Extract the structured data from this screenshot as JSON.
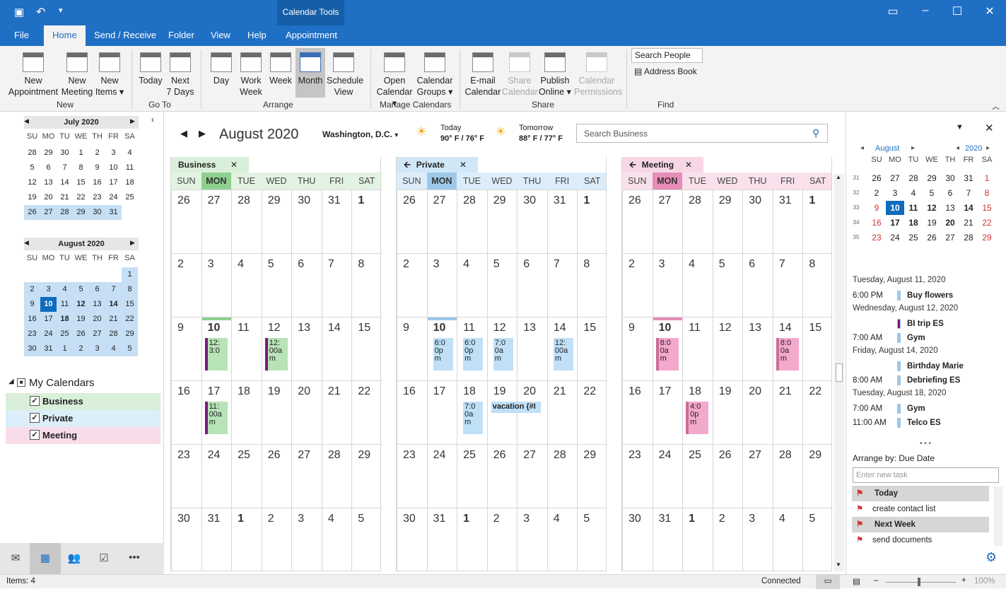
{
  "titlebar": {
    "context": "Calendar Tools"
  },
  "tabs": [
    "File",
    "Home",
    "Send / Receive",
    "Folder",
    "View",
    "Help",
    "Appointment"
  ],
  "ribbon": {
    "groups": {
      "new": "New",
      "goto": "Go To",
      "arrange": "Arrange",
      "manage": "Manage Calendars",
      "share": "Share",
      "find": "Find"
    },
    "new_appointment": [
      "New",
      "Appointment"
    ],
    "new_meeting": [
      "New",
      "Meeting"
    ],
    "new_items": [
      "New",
      "Items ▾"
    ],
    "today": "Today",
    "next7": [
      "Next",
      "7 Days"
    ],
    "day": "Day",
    "workweek": [
      "Work",
      "Week"
    ],
    "week": "Week",
    "month": "Month",
    "schedule": [
      "Schedule",
      "View"
    ],
    "open_cal": [
      "Open",
      "Calendar ▾"
    ],
    "cal_groups": [
      "Calendar",
      "Groups ▾"
    ],
    "email_cal": [
      "E-mail",
      "Calendar"
    ],
    "share_cal": [
      "Share",
      "Calendar"
    ],
    "publish": [
      "Publish",
      "Online ▾"
    ],
    "permissions": [
      "Calendar",
      "Permissions"
    ],
    "search_people": "Search People",
    "address_book": "Address Book"
  },
  "mini1": {
    "title": "July 2020",
    "dows": [
      "SU",
      "MO",
      "TU",
      "WE",
      "TH",
      "FR",
      "SA"
    ],
    "weeks": [
      [
        "28",
        "29",
        "30",
        "1",
        "2",
        "3",
        "4"
      ],
      [
        "5",
        "6",
        "7",
        "8",
        "9",
        "10",
        "11"
      ],
      [
        "12",
        "13",
        "14",
        "15",
        "16",
        "17",
        "18"
      ],
      [
        "19",
        "20",
        "21",
        "22",
        "23",
        "24",
        "25"
      ],
      [
        "26",
        "27",
        "28",
        "29",
        "30",
        "31",
        ""
      ]
    ]
  },
  "mini2": {
    "title": "August 2020",
    "weeks": [
      [
        "",
        "",
        "",
        "",
        "",
        "",
        "1"
      ],
      [
        "2",
        "3",
        "4",
        "5",
        "6",
        "7",
        "8"
      ],
      [
        "9",
        "10",
        "11",
        "12",
        "13",
        "14",
        "15"
      ],
      [
        "16",
        "17",
        "18",
        "19",
        "20",
        "21",
        "22"
      ],
      [
        "23",
        "24",
        "25",
        "26",
        "27",
        "28",
        "29"
      ],
      [
        "30",
        "31",
        "1",
        "2",
        "3",
        "4",
        "5"
      ]
    ]
  },
  "mycalendars": {
    "title": "My Calendars",
    "items": [
      "Business",
      "Private",
      "Meeting"
    ]
  },
  "calheader": {
    "title": "August 2020",
    "location": "Washington,  D.C.",
    "today_label": "Today",
    "today_temp": "90° F / 76° F",
    "tomorrow_label": "Tomorrow",
    "tomorrow_temp": "88° F / 77° F",
    "search_placeholder": "Search Business"
  },
  "calendars": [
    {
      "name": "Business",
      "color": "#d9efd9",
      "hdr": "#e3f3e3",
      "mon": "#8fcf8f"
    },
    {
      "name": "Private",
      "color": "#cfe7f7",
      "hdr": "#dcedf9",
      "mon": "#9cc8ea"
    },
    {
      "name": "Meeting",
      "color": "#f7d7e6",
      "hdr": "#f9e1ec",
      "mon": "#e88cb8"
    }
  ],
  "dows": [
    "SUN",
    "MON",
    "TUE",
    "WED",
    "THU",
    "FRI",
    "SAT"
  ],
  "weeks": [
    [
      "26",
      "27",
      "28",
      "29",
      "30",
      "31",
      "1"
    ],
    [
      "2",
      "3",
      "4",
      "5",
      "6",
      "7",
      "8"
    ],
    [
      "9",
      "10",
      "11",
      "12",
      "13",
      "14",
      "15"
    ],
    [
      "16",
      "17",
      "18",
      "19",
      "20",
      "21",
      "22"
    ],
    [
      "23",
      "24",
      "25",
      "26",
      "27",
      "28",
      "29"
    ],
    [
      "30",
      "31",
      "1",
      "2",
      "3",
      "4",
      "5"
    ]
  ],
  "events": {
    "business": [
      {
        "w": 2,
        "d": 1,
        "text": "12:\n3:0"
      },
      {
        "w": 2,
        "d": 3,
        "text": "12:\n00a\nm"
      },
      {
        "w": 3,
        "d": 1,
        "text": "11:\n00a\nm"
      }
    ],
    "private": [
      {
        "w": 2,
        "d": 1,
        "text": "6:0\n0p\nm"
      },
      {
        "w": 2,
        "d": 2,
        "text": "6:0\n0p\nm"
      },
      {
        "w": 2,
        "d": 3,
        "text": "7:0\n0a\nm"
      },
      {
        "w": 2,
        "d": 5,
        "text": "12:\n00a\nm"
      },
      {
        "w": 3,
        "d": 2,
        "text": "7:0\n0a\nm"
      },
      {
        "w": 3,
        "d": 3,
        "text": "vacation {#I"
      }
    ],
    "meeting": [
      {
        "w": 2,
        "d": 1,
        "text": "8:0\n0a\nm"
      },
      {
        "w": 2,
        "d": 5,
        "text": "8:0\n0a\nm"
      },
      {
        "w": 3,
        "d": 2,
        "text": "4:0\n0p\nm"
      }
    ]
  },
  "todo": {
    "mini": {
      "month": "August",
      "year": "2020",
      "dows": [
        "SU",
        "MO",
        "TU",
        "WE",
        "TH",
        "FR",
        "SA"
      ],
      "rows": [
        [
          "31",
          "26",
          "27",
          "28",
          "29",
          "30",
          "31",
          "1"
        ],
        [
          "32",
          "2",
          "3",
          "4",
          "5",
          "6",
          "7",
          "8"
        ],
        [
          "33",
          "9",
          "10",
          "11",
          "12",
          "13",
          "14",
          "15"
        ],
        [
          "34",
          "16",
          "17",
          "18",
          "19",
          "20",
          "21",
          "22"
        ],
        [
          "35",
          "23",
          "24",
          "25",
          "26",
          "27",
          "28",
          "29"
        ]
      ]
    },
    "agenda": [
      {
        "h": "Tuesday, August 11, 2020"
      },
      {
        "t": "6:00 PM",
        "s": "Buy flowers",
        "c": "#9cc8ea"
      },
      {
        "h": "Wednesday, August 12, 2020"
      },
      {
        "t": "",
        "s": "BI trip  ES",
        "c": "#7a1a7a"
      },
      {
        "t": "7:00 AM",
        "s": "Gym",
        "c": "#9cc8ea"
      },
      {
        "h": "Friday, August 14, 2020"
      },
      {
        "t": "",
        "s": "Birthday Marie",
        "c": "#9cc8ea"
      },
      {
        "t": "8:00 AM",
        "s": "Debriefing ES",
        "c": "#9cc8ea"
      },
      {
        "h": "Tuesday, August 18, 2020"
      },
      {
        "t": "7:00 AM",
        "s": "Gym",
        "c": "#9cc8ea"
      },
      {
        "t": "11:00 AM",
        "s": "Telco ES",
        "c": "#9cc8ea"
      }
    ],
    "arrange": "Arrange by: Due Date",
    "new_task": "Enter new task",
    "tasks": [
      {
        "group": "Today"
      },
      {
        "task": "create contact list"
      },
      {
        "group": "Next Week"
      },
      {
        "task": "send documents"
      }
    ]
  },
  "status": {
    "items": "Items: 4",
    "connected": "Connected",
    "zoom": "100%"
  }
}
